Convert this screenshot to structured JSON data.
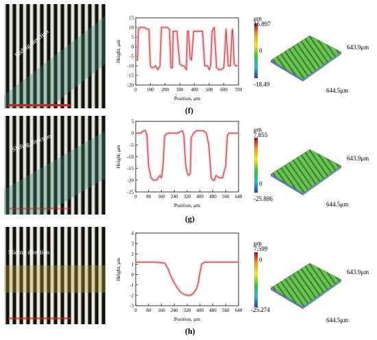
{
  "panels": [
    {
      "caption": "(f)",
      "sliding_label": "Sliding direction",
      "colorbar": {
        "unit": "μm",
        "max": "15.897",
        "mid": "0",
        "min": "-18.49"
      },
      "surface_labels": {
        "y_extent": "643.9μm",
        "x_extent": "644.5μm"
      }
    },
    {
      "caption": "(g)",
      "sliding_label": "Sliding direction",
      "colorbar": {
        "unit": "μm",
        "max": "7.855",
        "mid": "0",
        "min": "-25.886"
      },
      "surface_labels": {
        "y_extent": "643.9μm",
        "x_extent": "644.5μm"
      }
    },
    {
      "caption": "(h)",
      "sliding_label": "Sliding direction",
      "colorbar": {
        "unit": "μm",
        "max": "7.599",
        "mid": "0",
        "min": "-25.274"
      },
      "surface_labels": {
        "y_extent": "643.9μm",
        "x_extent": "644.5μm"
      }
    }
  ],
  "chart_data": [
    {
      "type": "line",
      "xlabel": "Position, μm",
      "ylabel": "Height, μm",
      "xlim": [
        0,
        700
      ],
      "ylim": [
        -20,
        15
      ],
      "xticks": [
        0,
        100,
        200,
        300,
        400,
        500,
        600,
        700
      ],
      "yticks": [
        -20,
        -15,
        -10,
        -5,
        0,
        5,
        10,
        15
      ],
      "grid": false,
      "series": [
        {
          "color": "#c0392b",
          "x": [
            0,
            12,
            18,
            30,
            60,
            80,
            90,
            100,
            110,
            120,
            135,
            150,
            165,
            175,
            185,
            200,
            215,
            230,
            240,
            250,
            255,
            265,
            280,
            300,
            315,
            330,
            345,
            352,
            360,
            370,
            380,
            395,
            415,
            435,
            455,
            470,
            490,
            500,
            510,
            520,
            535,
            550,
            565,
            580,
            600,
            615,
            630,
            645,
            655,
            660,
            670,
            680,
            700
          ],
          "y": [
            -7,
            -7,
            9,
            10,
            10,
            9,
            9,
            -10,
            -11,
            -11,
            -10,
            -12,
            -10,
            10,
            10,
            10,
            10,
            9,
            -11,
            -11,
            8,
            8,
            8,
            -9,
            -10,
            -10,
            -12,
            8,
            8,
            -6,
            -7,
            8,
            8,
            8,
            8,
            -10,
            -10,
            -12,
            -10,
            8,
            10,
            -11,
            -12,
            -12,
            -11,
            9,
            -10,
            -10,
            8,
            9,
            -9,
            -10,
            -10
          ]
        }
      ]
    },
    {
      "type": "line",
      "xlabel": "Position, μm",
      "ylabel": "Height, μm",
      "xlim": [
        0,
        640
      ],
      "ylim": [
        -25,
        5
      ],
      "xticks": [
        0,
        80,
        160,
        240,
        320,
        400,
        480,
        560,
        640
      ],
      "yticks": [
        -25,
        -20,
        -15,
        -10,
        -5,
        0,
        5
      ],
      "grid": false,
      "series": [
        {
          "color": "#c0392b",
          "x": [
            0,
            30,
            50,
            60,
            70,
            80,
            95,
            110,
            130,
            150,
            160,
            170,
            180,
            200,
            230,
            260,
            290,
            300,
            310,
            320,
            330,
            340,
            345,
            360,
            380,
            400,
            420,
            440,
            455,
            470,
            480,
            490,
            500,
            520,
            540,
            560,
            570,
            580,
            590,
            610,
            640
          ],
          "y": [
            0,
            0,
            1,
            1,
            -1,
            -14,
            -19,
            -20,
            -20,
            -18,
            -19,
            -14,
            -1,
            0,
            0,
            0,
            1,
            -1,
            -13,
            -17,
            -18,
            -17,
            -2,
            0,
            1,
            1,
            1,
            0,
            -5,
            -19,
            -20,
            -20,
            -18,
            -19,
            -19,
            -14,
            -1,
            0,
            0,
            0,
            0
          ]
        }
      ]
    },
    {
      "type": "line",
      "xlabel": "Position, μm",
      "ylabel": "Height, μm",
      "xlim": [
        0,
        640
      ],
      "ylim": [
        -3,
        4
      ],
      "xticks": [
        0,
        80,
        160,
        240,
        320,
        400,
        480,
        560,
        640
      ],
      "yticks": [
        -3,
        -2,
        -1,
        0,
        1,
        2,
        3,
        4
      ],
      "grid": false,
      "series": [
        {
          "color": "#c0392b",
          "x": [
            0,
            60,
            120,
            180,
            200,
            220,
            240,
            260,
            280,
            300,
            320,
            340,
            360,
            380,
            390,
            400,
            410,
            430,
            460,
            520,
            640
          ],
          "y": [
            1.2,
            1.2,
            1.2,
            1.1,
            0.6,
            -0.2,
            -0.8,
            -1.3,
            -1.7,
            -1.9,
            -2.0,
            -2.0,
            -1.8,
            -1.3,
            -0.7,
            0.2,
            1.0,
            1.2,
            1.2,
            1.2,
            1.2
          ]
        }
      ]
    }
  ]
}
